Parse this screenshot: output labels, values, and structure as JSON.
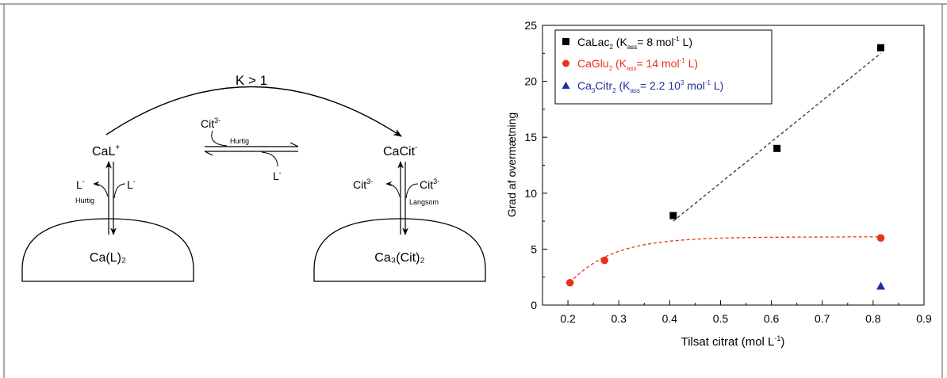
{
  "scheme": {
    "k_label": "K > 1",
    "left_species": "CaL",
    "left_species_sup": "+",
    "right_species": "CaCit",
    "right_species_sup": "-",
    "top_cit": "Cit",
    "top_cit_sup": "3-",
    "top_fast": "Hurtig",
    "top_ligand": "L",
    "top_ligand_sup": "-",
    "left_l_out": "L",
    "left_l_out_sup": "-",
    "left_l_in": "L",
    "left_l_in_sup": "-",
    "left_rate": "Hurtig",
    "right_cit_out": "Cit",
    "right_cit_out_sup": "3-",
    "right_cit_in": "Cit",
    "right_cit_in_sup": "3-",
    "right_rate": "Langsom",
    "left_solid": "Ca(L)₂",
    "right_solid": "Ca₃(Cit)₂"
  },
  "chart_data": {
    "type": "scatter",
    "xlabel": "Tilsat citrat (mol L",
    "xlabel_sup": "-1",
    "xlabel_end": ")",
    "ylabel": "Grad af overmætning",
    "xlim": [
      0.15,
      0.9
    ],
    "ylim": [
      0,
      25
    ],
    "xticks": [
      "0.2",
      "0.3",
      "0.4",
      "0.5",
      "0.6",
      "0.7",
      "0.8",
      "0.9"
    ],
    "yticks": [
      "0",
      "5",
      "10",
      "15",
      "20",
      "25"
    ],
    "grid": false,
    "legend_position": "top-left",
    "series": [
      {
        "name": "CaLac",
        "name_sub": "2",
        "name_k": " (K",
        "name_k_sub": "ass",
        "name_value": "= 8 mol",
        "name_value_sup": "-1",
        "name_end": " L)",
        "marker": "square",
        "color": "#000000",
        "x": [
          0.407,
          0.611,
          0.815
        ],
        "y": [
          8,
          14,
          23
        ],
        "fit": "linear"
      },
      {
        "name": "CaGlu",
        "name_sub": "2",
        "name_k": " (K",
        "name_k_sub": "ass",
        "name_value": "= 14 mol",
        "name_value_sup": "-1",
        "name_end": " L)",
        "marker": "circle",
        "color": "#e8321e",
        "x": [
          0.204,
          0.272,
          0.815
        ],
        "y": [
          2,
          4,
          6
        ],
        "fit": "saturating"
      },
      {
        "name": "Ca",
        "name_sub": "3",
        "name_mid": "Citr",
        "name_mid_sub": "2",
        "name_k": " (K",
        "name_k_sub": "ass",
        "name_value": "= 2.2 10",
        "name_value_sup": "3",
        "name_value2": " mol",
        "name_value2_sup": "-1",
        "name_end": " L)",
        "marker": "triangle",
        "color": "#1f2f9a",
        "x": [
          0.815
        ],
        "y": [
          1.7
        ],
        "fit": "none"
      }
    ]
  }
}
